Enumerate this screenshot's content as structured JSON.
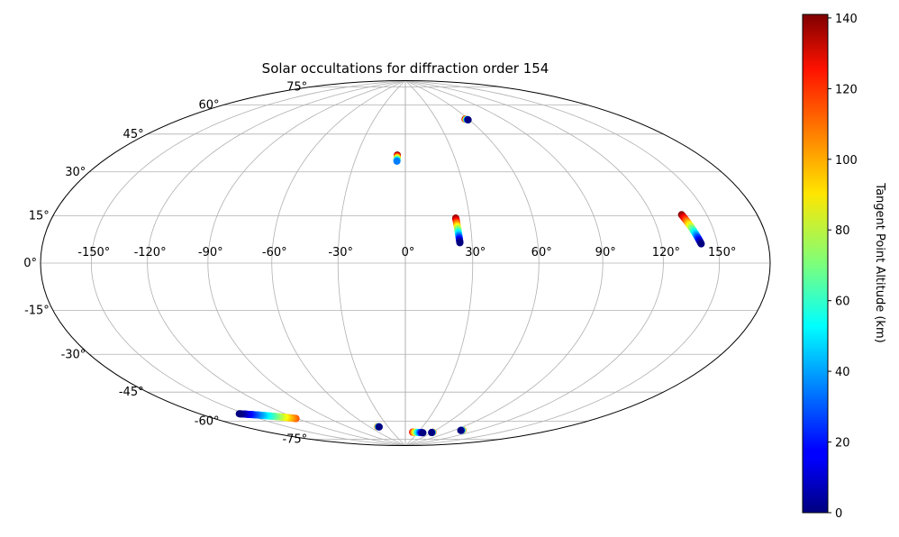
{
  "chart_data": {
    "type": "scatter",
    "projection": "hammer",
    "title": "Solar occultations for diffraction order 154",
    "xlabel": "",
    "ylabel": "",
    "grid": true,
    "xlim": [
      -180,
      180
    ],
    "ylim": [
      -90,
      90
    ],
    "lon_ticks": [
      -150,
      -120,
      -90,
      -60,
      -30,
      0,
      30,
      60,
      90,
      120,
      150
    ],
    "lon_tick_labels": [
      "-150°",
      "-120°",
      "-90°",
      "-60°",
      "-30°",
      "0°",
      "30°",
      "60°",
      "90°",
      "120°",
      "150°"
    ],
    "lat_ticks": [
      -75,
      -60,
      -45,
      -30,
      -15,
      0,
      15,
      30,
      45,
      60,
      75
    ],
    "lat_tick_labels": [
      "-75°",
      "-60°",
      "-45°",
      "-30°",
      "-15°",
      "0°",
      "15°",
      "30°",
      "45°",
      "60°",
      "75°"
    ],
    "colorbar": {
      "label": "Tangent Point Altitude (km)",
      "colormap": "jet",
      "range": [
        0,
        141
      ],
      "ticks": [
        0,
        20,
        40,
        60,
        80,
        100,
        120,
        140
      ],
      "tick_labels": [
        "0",
        "20",
        "40",
        "60",
        "80",
        "100",
        "120",
        "140"
      ]
    },
    "tracks": [
      {
        "lon_start": -5,
        "lat_start": 49.5,
        "alt_start": 140,
        "lon_end": -5,
        "lat_end": 46.5,
        "alt_end": 35
      },
      {
        "lon_start": 57,
        "lat_start": 66.5,
        "alt_start": 140,
        "lon_end": 59,
        "lat_end": 66.0,
        "alt_end": 0
      },
      {
        "lon_start": 23.5,
        "lat_start": 20,
        "alt_start": 140,
        "lon_end": 24.5,
        "lat_end": 9,
        "alt_end": 0
      },
      {
        "lon_start": 136,
        "lat_start": 18,
        "alt_start": 141,
        "lon_end": 141,
        "lat_end": 7,
        "alt_end": 0
      },
      {
        "lon_start": -154,
        "lat_start": -60.5,
        "alt_start": 0,
        "lon_end": -121,
        "lat_end": -68,
        "alt_end": 112
      },
      {
        "lon_start": -47,
        "lat_start": -78,
        "alt_start": 120,
        "lon_end": -45,
        "lat_end": -78.2,
        "alt_end": 0
      },
      {
        "lon_start": 17,
        "lat_start": -81.8,
        "alt_start": 120,
        "lon_end": 42,
        "lat_end": -81.8,
        "alt_end": 0
      },
      {
        "lon_start": 62,
        "lat_start": -81,
        "alt_start": 120,
        "lon_end": 60,
        "lat_end": -81.2,
        "alt_end": 0
      },
      {
        "lon_start": 102,
        "lat_start": -77.5,
        "alt_start": 110,
        "lon_end": 100,
        "lat_end": -77.8,
        "alt_end": 0
      }
    ]
  }
}
